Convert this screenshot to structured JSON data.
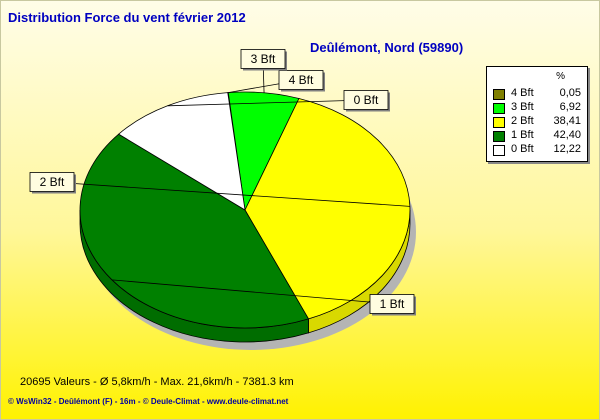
{
  "header": {
    "title": "Distribution Force du vent  février 2012",
    "location": "Deûlémont, Nord (59890)"
  },
  "footer": {
    "stats": "20695 Valeurs   -   Ø 5,8km/h  -  Max. 21,6km/h   -   7381.3 km",
    "credits": "© WsWin32  -  Deûlémont (F) - 16m  -  © Deule-Climat - www.deule-climat.net"
  },
  "chart_data": {
    "type": "pie",
    "legend_unit": "%",
    "legend_position": "top-right",
    "slices": [
      {
        "label": "4 Bft",
        "value": 0.05,
        "value_text": "0,05",
        "color": "#808000"
      },
      {
        "label": "3 Bft",
        "value": 6.92,
        "value_text": "6,92",
        "color": "#00ff00"
      },
      {
        "label": "2 Bft",
        "value": 38.41,
        "value_text": "38,41",
        "color": "#ffff00"
      },
      {
        "label": "1 Bft",
        "value": 42.4,
        "value_text": "42,40",
        "color": "#008000"
      },
      {
        "label": "0 Bft",
        "value": 12.22,
        "value_text": "12,22",
        "color": "#ffffff"
      }
    ]
  }
}
